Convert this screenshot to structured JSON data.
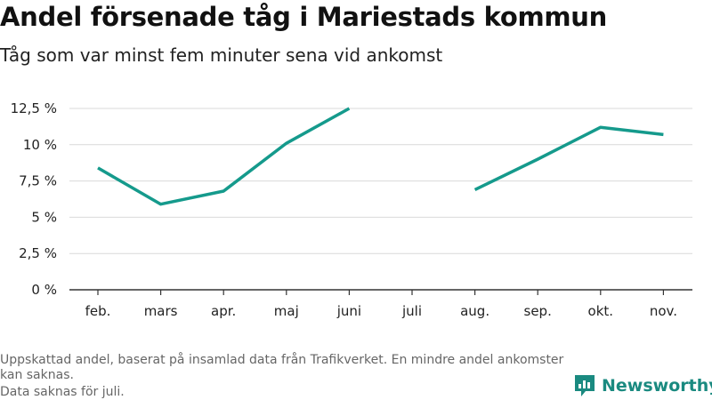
{
  "header": {
    "title": "Andel försenade tåg i Mariestads kommun",
    "subtitle": "Tåg som var minst fem minuter sena vid ankomst"
  },
  "notes": {
    "line1": "Uppskattad andel, baserat på insamlad data från Trafikverket. En mindre andel ankomster kan saknas.",
    "line2": "Data saknas för juli."
  },
  "brand": {
    "name": "Newsworthy",
    "color": "#1a8a80"
  },
  "chart_data": {
    "type": "line",
    "categories": [
      "feb.",
      "mars",
      "apr.",
      "maj",
      "juni",
      "juli",
      "aug.",
      "sep.",
      "okt.",
      "nov."
    ],
    "series": [
      {
        "values": [
          8.4,
          5.9,
          6.8,
          10.1,
          12.5,
          null,
          6.9,
          9.0,
          11.2,
          10.7
        ],
        "color": "#159a8c"
      }
    ],
    "y_ticks": [
      "0 %",
      "2,5 %",
      "5 %",
      "7,5 %",
      "10 %",
      "12,5 %"
    ],
    "y_tick_values": [
      0,
      2.5,
      5,
      7.5,
      10,
      12.5
    ],
    "ylim": [
      0,
      12.5
    ],
    "grid": true,
    "legend": "none"
  }
}
